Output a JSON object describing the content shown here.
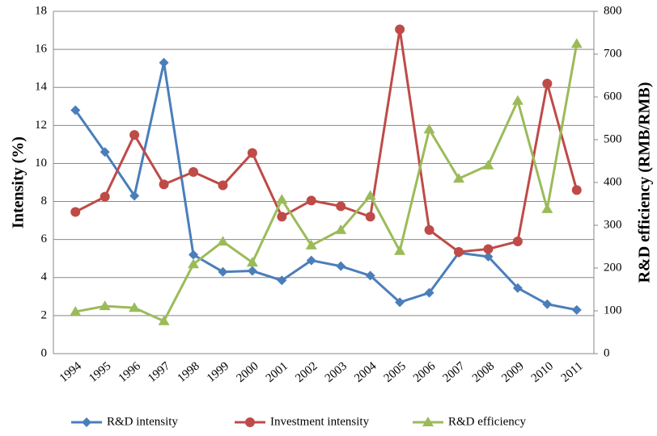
{
  "chart_data": {
    "type": "line",
    "ylabel": "Intensity (%)",
    "y2label": "R&D efficiency (RMB/RMB)",
    "categories": [
      "1994",
      "1995",
      "1996",
      "1997",
      "1998",
      "1999",
      "2000",
      "2001",
      "2002",
      "2003",
      "2004",
      "2005",
      "2006",
      "2007",
      "2008",
      "2009",
      "2010",
      "2011"
    ],
    "series": [
      {
        "name": "R&D intensity",
        "color": "#4a7ebb",
        "marker": "diamond",
        "axis": "y",
        "values": [
          12.8,
          10.6,
          8.3,
          15.3,
          5.2,
          4.3,
          4.35,
          3.85,
          4.9,
          4.6,
          4.1,
          2.7,
          3.2,
          5.3,
          5.1,
          3.45,
          2.6,
          2.3
        ]
      },
      {
        "name": "Investment intensity",
        "color": "#be4b48",
        "marker": "circle",
        "axis": "y",
        "values": [
          7.45,
          8.25,
          11.5,
          8.9,
          9.55,
          8.85,
          10.55,
          7.2,
          8.05,
          7.75,
          7.2,
          17.05,
          6.5,
          5.35,
          5.5,
          5.9,
          14.2,
          8.6
        ]
      },
      {
        "name": "R&D efficiency",
        "color": "#9bbb59",
        "marker": "triangle",
        "axis": "y2",
        "values": [
          98,
          111,
          107,
          76,
          209,
          262,
          213,
          360,
          253,
          289,
          369,
          240,
          524,
          409,
          440,
          591,
          338,
          724
        ]
      }
    ],
    "ylim": [
      0,
      18
    ],
    "yticks": [
      0,
      2,
      4,
      6,
      8,
      10,
      12,
      14,
      16,
      18
    ],
    "y2lim": [
      0,
      800
    ],
    "y2ticks": [
      0,
      100,
      200,
      300,
      400,
      500,
      600,
      700,
      800
    ],
    "grid": true,
    "legend": "bottom"
  }
}
